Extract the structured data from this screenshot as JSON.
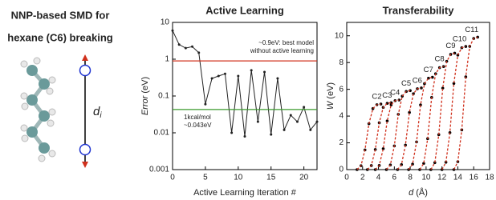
{
  "panel": {
    "title": [
      "NNP-based SMD for",
      "hexane (C6) breaking"
    ],
    "d_symbol": "d",
    "d_subscript": "i"
  },
  "chart_data": [
    {
      "type": "line",
      "title": "Active Learning",
      "x_label": "Active Learning Iteration #",
      "y_label": {
        "italic": "Error",
        "rest": "(eV)"
      },
      "log_y": true,
      "x": [
        0,
        1,
        2,
        3,
        4,
        5,
        6,
        7,
        8,
        9,
        10,
        11,
        12,
        13,
        14,
        15,
        16,
        17,
        18,
        19,
        20,
        21,
        22
      ],
      "series": [
        {
          "color": "#222222",
          "values": [
            6,
            2.5,
            2.0,
            2.2,
            1.5,
            0.06,
            0.3,
            0.35,
            0.4,
            0.01,
            0.35,
            0.008,
            0.5,
            0.02,
            0.45,
            0.009,
            0.3,
            0.012,
            0.03,
            0.02,
            0.05,
            0.012,
            0.02
          ]
        }
      ],
      "xlim": [
        0,
        22
      ],
      "xticks": [
        0,
        5,
        10,
        15,
        20
      ],
      "ylim": [
        0.001,
        10
      ],
      "yticks": [
        0.001,
        0.01,
        0.1,
        1,
        10
      ],
      "hlines": [
        {
          "value": 0.9,
          "color": "#d0301c",
          "label": [
            "~0.9eV: best model",
            "without active learning"
          ]
        },
        {
          "value": 0.043,
          "color": "#3a9a2c",
          "label": [
            "1kcal/mol",
            "~0.043eV"
          ]
        }
      ]
    },
    {
      "type": "scatter",
      "title": "Transferability",
      "x_label": {
        "italic": "d",
        "rest": "(Å)"
      },
      "y_label": {
        "italic": "W",
        "rest": "(eV)"
      },
      "fit_color": "#d0301c",
      "point_color": "#000000",
      "series": [
        {
          "name": "C2",
          "color": "#000000",
          "x": [
            1.3,
            1.8,
            2.3,
            2.8,
            3.3,
            3.8,
            4.3
          ],
          "values": [
            0,
            0.29,
            1.47,
            3.43,
            4.56,
            4.85,
            4.9
          ]
        },
        {
          "name": "C3",
          "color": "#000000",
          "x": [
            2.6,
            3.1,
            3.6,
            4.1,
            4.6,
            5.1,
            5.6
          ],
          "values": [
            0,
            0.3,
            1.5,
            3.5,
            4.65,
            4.95,
            5.0
          ]
        },
        {
          "name": "C4",
          "color": "#000000",
          "x": [
            3.6,
            4.1,
            4.6,
            5.1,
            5.6,
            6.1,
            6.6
          ],
          "values": [
            0,
            0.31,
            1.56,
            3.64,
            4.84,
            5.15,
            5.2
          ]
        },
        {
          "name": "C5",
          "color": "#000000",
          "x": [
            5,
            5.5,
            6,
            6.5,
            7,
            7.5,
            8
          ],
          "values": [
            0,
            0.35,
            1.77,
            4.13,
            5.49,
            5.84,
            5.9
          ]
        },
        {
          "name": "C6",
          "color": "#3a9a2c",
          "x": [
            6.4,
            6.9,
            7.4,
            7.9,
            8.4,
            8.9,
            9.4
          ],
          "values": [
            0,
            0.37,
            1.83,
            4.27,
            5.67,
            6.04,
            6.1
          ]
        },
        {
          "name": "C7",
          "color": "#3a9a2c",
          "x": [
            7.8,
            8.3,
            8.8,
            9.3,
            9.8,
            10.3,
            10.8
          ],
          "values": [
            0,
            0.41,
            2.07,
            4.83,
            6.42,
            6.83,
            6.9
          ]
        },
        {
          "name": "C8",
          "color": "#3a9a2c",
          "x": [
            9.2,
            9.7,
            10.2,
            10.7,
            11.2,
            11.7,
            12.2
          ],
          "values": [
            0,
            0.46,
            2.31,
            5.39,
            7.16,
            7.62,
            7.7
          ]
        },
        {
          "name": "C9",
          "color": "#000000",
          "x": [
            10.6,
            11.1,
            11.6,
            12.1,
            12.6,
            13.1,
            13.6
          ],
          "values": [
            0,
            0.52,
            2.61,
            6.09,
            8.09,
            8.61,
            8.7
          ]
        },
        {
          "name": "C10",
          "color": "#000000",
          "x": [
            12,
            12.5,
            13,
            13.5,
            14,
            14.5,
            15
          ],
          "values": [
            0,
            0.55,
            2.76,
            6.44,
            8.56,
            9.11,
            9.2
          ]
        },
        {
          "name": "C11",
          "color": "#000000",
          "x": [
            13.5,
            14,
            14.5,
            15,
            15.5,
            16,
            16.5
          ],
          "values": [
            0,
            0.59,
            2.97,
            6.93,
            9.21,
            9.8,
            9.9
          ]
        }
      ],
      "xlim": [
        0,
        18
      ],
      "xticks": [
        0,
        2,
        4,
        6,
        8,
        10,
        12,
        14,
        16,
        18
      ],
      "ylim": [
        0,
        11
      ],
      "yticks": [
        0,
        2,
        4,
        6,
        8,
        10
      ]
    }
  ]
}
